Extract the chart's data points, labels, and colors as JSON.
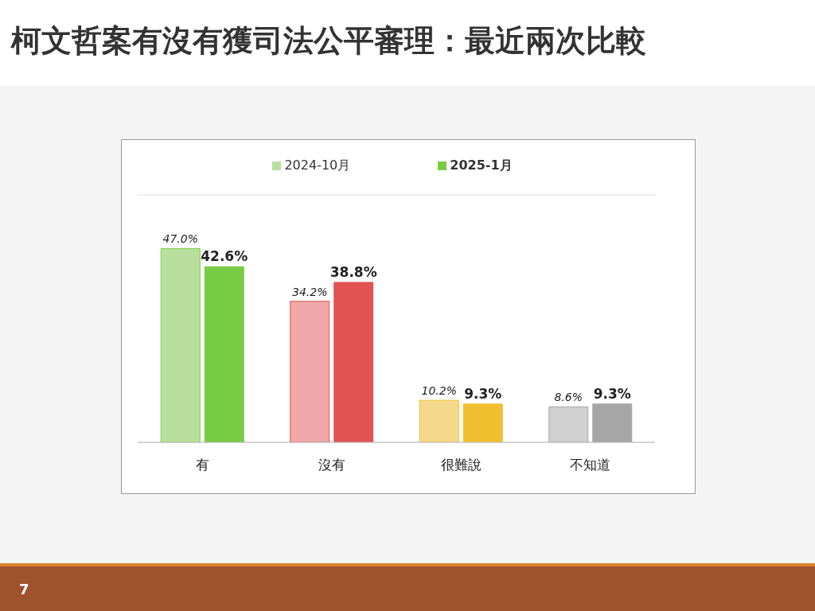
{
  "chart_data": {
    "type": "bar",
    "title": "柯文哲案有沒有獲司法公平審理：最近兩次比較",
    "categories": [
      "有",
      "沒有",
      "很難說",
      "不知道"
    ],
    "series": [
      {
        "name": "2024-10月",
        "color": "#b8e09c",
        "colors": [
          "#b8e09c",
          "#f0a8a8",
          "#f5d98a",
          "#d0d0d0"
        ],
        "values": [
          47.0,
          34.2,
          10.2,
          8.6
        ],
        "value_labels": [
          "47.0%",
          "34.2%",
          "10.2%",
          "8.6%"
        ]
      },
      {
        "name": "2025-1月",
        "color": "#77cc44",
        "colors": [
          "#77cc44",
          "#e05252",
          "#f0c030",
          "#a6a6a6"
        ],
        "values": [
          42.6,
          38.8,
          9.3,
          9.3
        ],
        "value_labels": [
          "42.6%",
          "38.8%",
          "9.3%",
          "9.3%"
        ]
      }
    ],
    "ylim": [
      0,
      60
    ],
    "tick_labels": "x",
    "grid": "y",
    "legend": "top",
    "annotations": [
      "7"
    ]
  }
}
